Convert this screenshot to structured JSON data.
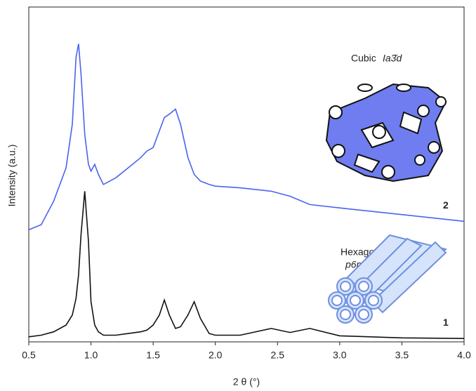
{
  "chart_data": {
    "type": "line",
    "x_label": "2 θ (°)",
    "y_label": "Intensity  (a.u.)",
    "x": [
      0.5,
      0.6,
      0.7,
      0.8,
      0.85,
      0.88,
      0.9,
      0.92,
      0.95,
      0.98,
      1.0,
      1.03,
      1.06,
      1.1,
      1.2,
      1.3,
      1.4,
      1.45,
      1.5,
      1.55,
      1.59,
      1.63,
      1.68,
      1.72,
      1.78,
      1.83,
      1.88,
      1.95,
      2.0,
      2.2,
      2.45,
      2.6,
      2.76,
      3.0,
      3.5,
      4.0
    ],
    "series": [
      {
        "name": "2",
        "color": "#4a63f0",
        "values": [
          33.5,
          35,
          42,
          52,
          65,
          85,
          89,
          80,
          62,
          53,
          51,
          53,
          50,
          47,
          49,
          52,
          55,
          57,
          58,
          63,
          67,
          68,
          69.5,
          65,
          55,
          50,
          48,
          47,
          46.5,
          46,
          45,
          43.5,
          41,
          40,
          38,
          36
        ]
      },
      {
        "name": "1",
        "color": "#111111",
        "values": [
          1.5,
          2,
          3,
          5,
          8,
          13,
          20,
          32,
          45,
          30,
          12,
          5,
          3,
          2,
          2,
          2.5,
          3,
          3.5,
          5,
          8,
          12.5,
          8,
          4,
          4.5,
          8,
          12,
          7,
          2.5,
          2,
          2,
          4,
          2.8,
          4,
          1.8,
          1.2,
          1
        ]
      }
    ],
    "xlim": [
      0.5,
      4.0
    ],
    "xticks": [
      0.5,
      {
        "value": 1,
        "label": "1.0"
      },
      1.5,
      {
        "value": 2,
        "label": "2.0"
      },
      2.5,
      {
        "value": 3,
        "label": "3.0"
      },
      3.5,
      {
        "value": 4,
        "label": "4.0"
      }
    ],
    "ylim": [
      0,
      100
    ],
    "annotations": {
      "cubic": "Cubic",
      "cubic_group": "Ia3̄d",
      "hexagonal": "Hexagonal",
      "hexagonal_group": "p6mm"
    }
  }
}
